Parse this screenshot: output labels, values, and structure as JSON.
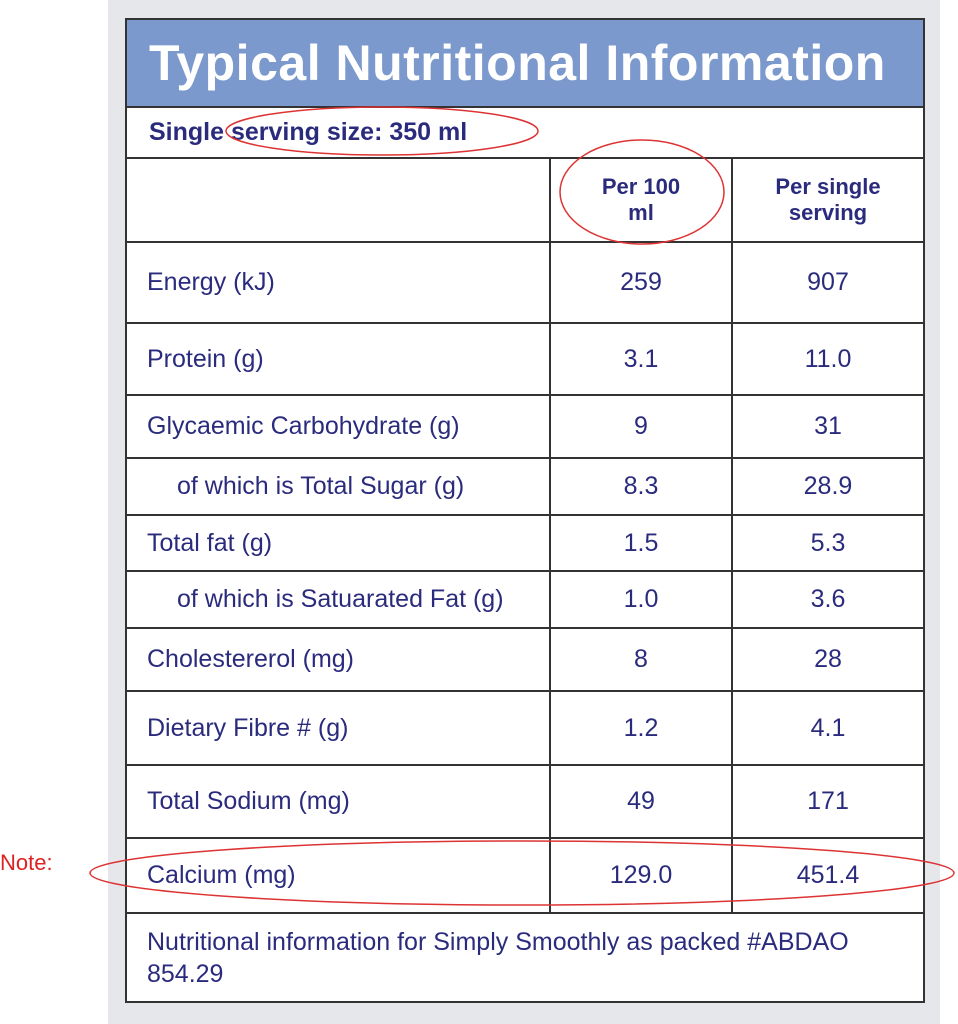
{
  "title": "Typical Nutritional Information",
  "serving_size": "Single serving size: 350 ml",
  "table": {
    "headers": [
      "Per 100 ml",
      "Per single serving"
    ],
    "rows": [
      [
        "Energy (kJ)",
        "259",
        "907"
      ],
      [
        "Protein (g)",
        "3.1",
        "11.0"
      ],
      [
        "Glycaemic Carbohydrate (g)",
        "9",
        "31"
      ],
      [
        "of which is Total Sugar (g)",
        "8.3",
        "28.9"
      ],
      [
        "Total fat (g)",
        "1.5",
        "5.3"
      ],
      [
        "of which is Satuarated Fat (g)",
        "1.0",
        "3.6"
      ],
      [
        "Cholestererol (mg)",
        "8",
        "28"
      ],
      [
        "Dietary Fibre # (g)",
        "1.2",
        "4.1"
      ],
      [
        "Total Sodium (mg)",
        "49",
        "171"
      ],
      [
        "Calcium (mg)",
        "129.0",
        "451.4"
      ]
    ]
  },
  "footnote": "Nutritional information for Simply Smoothly as packed #ABDAO 854.29",
  "annotation": "Note:"
}
